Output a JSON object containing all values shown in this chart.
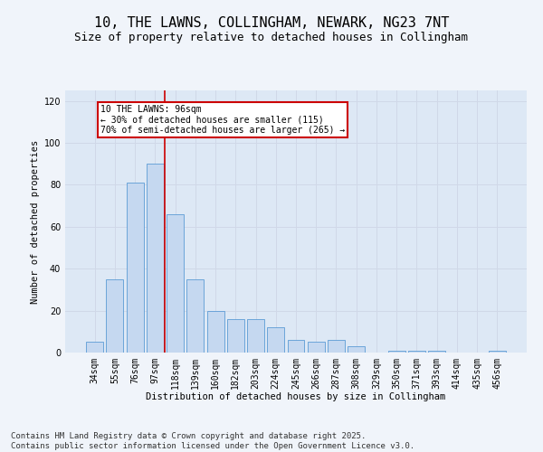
{
  "title1": "10, THE LAWNS, COLLINGHAM, NEWARK, NG23 7NT",
  "title2": "Size of property relative to detached houses in Collingham",
  "xlabel": "Distribution of detached houses by size in Collingham",
  "ylabel": "Number of detached properties",
  "bar_labels": [
    "34sqm",
    "55sqm",
    "76sqm",
    "97sqm",
    "118sqm",
    "139sqm",
    "160sqm",
    "182sqm",
    "203sqm",
    "224sqm",
    "245sqm",
    "266sqm",
    "287sqm",
    "308sqm",
    "329sqm",
    "350sqm",
    "371sqm",
    "393sqm",
    "414sqm",
    "435sqm",
    "456sqm"
  ],
  "bar_values": [
    5,
    35,
    81,
    90,
    66,
    35,
    20,
    16,
    16,
    12,
    6,
    5,
    6,
    3,
    0,
    1,
    1,
    1,
    0,
    0,
    1
  ],
  "bar_color": "#c5d8f0",
  "bar_edge_color": "#5b9bd5",
  "annotation_line1": "10 THE LAWNS: 96sqm",
  "annotation_line2": "← 30% of detached houses are smaller (115)",
  "annotation_line3": "70% of semi-detached houses are larger (265) →",
  "annotation_box_color": "#cc0000",
  "vline_x": 3.5,
  "vline_color": "#cc0000",
  "grid_color": "#d0d8e8",
  "bg_color": "#dde8f5",
  "fig_bg_color": "#f0f4fa",
  "ylim": [
    0,
    125
  ],
  "yticks": [
    0,
    20,
    40,
    60,
    80,
    100,
    120
  ],
  "footnote": "Contains HM Land Registry data © Crown copyright and database right 2025.\nContains public sector information licensed under the Open Government Licence v3.0.",
  "title1_fontsize": 11,
  "title2_fontsize": 9,
  "axis_label_fontsize": 7.5,
  "tick_fontsize": 7,
  "annotation_fontsize": 7,
  "footnote_fontsize": 6.5
}
